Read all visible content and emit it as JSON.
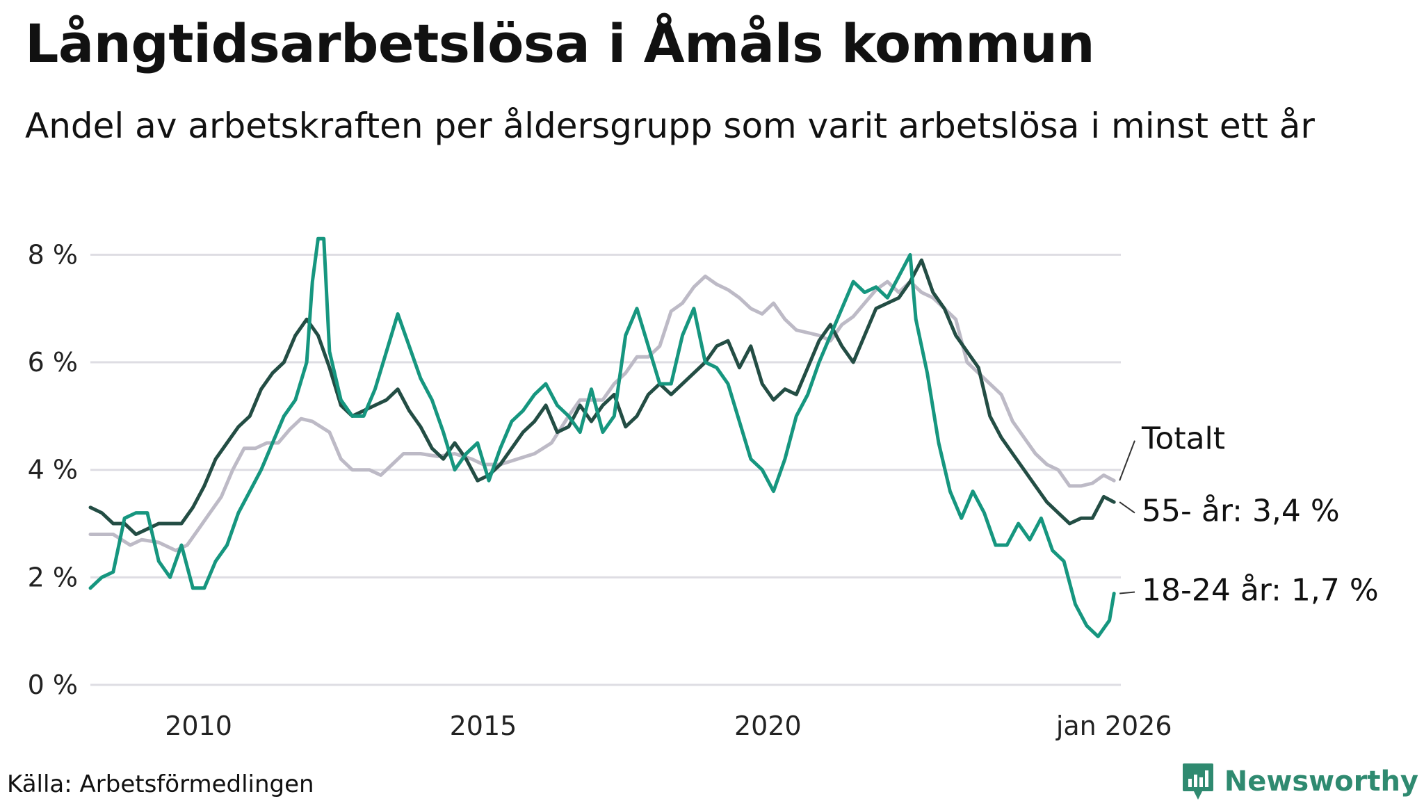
{
  "header": {
    "title": "Långtidsarbetslösa i Åmåls kommun",
    "subtitle": "Andel av arbetskraften per åldersgrupp som varit arbetslösa i minst ett år"
  },
  "footer": {
    "source": "Källa: Arbetsförmedlingen",
    "brand": "Newsworthy"
  },
  "colors": {
    "total": "#bdbac6",
    "age55": "#234d44",
    "age18_24": "#16967f",
    "grid": "#dedde3",
    "brand": "#2f8a70"
  },
  "chart_data": {
    "type": "line",
    "title": "Långtidsarbetslösa i Åmåls kommun",
    "subtitle": "Andel av arbetskraften per åldersgrupp som varit arbetslösa i minst ett år",
    "xlabel": "",
    "ylabel": "",
    "xlim": [
      2008.1,
      2026.2
    ],
    "ylim": [
      0,
      8.6
    ],
    "y_ticks": [
      0,
      2,
      4,
      6,
      8
    ],
    "y_tick_labels": [
      "0 %",
      "2 %",
      "4 %",
      "6 %",
      "8 %"
    ],
    "x_ticks": [
      2010,
      2015,
      2020,
      2026.08
    ],
    "x_tick_labels": [
      "2010",
      "2015",
      "2020",
      "jan 2026"
    ],
    "grid": true,
    "series": [
      {
        "name": "Totalt",
        "label": "Totalt",
        "key": "total",
        "points": [
          [
            2008.1,
            2.8
          ],
          [
            2008.5,
            2.8
          ],
          [
            2008.8,
            2.6
          ],
          [
            2009.0,
            2.7
          ],
          [
            2009.3,
            2.65
          ],
          [
            2009.6,
            2.5
          ],
          [
            2009.8,
            2.6
          ],
          [
            2010.0,
            2.9
          ],
          [
            2010.2,
            3.2
          ],
          [
            2010.4,
            3.5
          ],
          [
            2010.6,
            4.0
          ],
          [
            2010.8,
            4.4
          ],
          [
            2011.0,
            4.4
          ],
          [
            2011.2,
            4.5
          ],
          [
            2011.4,
            4.5
          ],
          [
            2011.6,
            4.75
          ],
          [
            2011.8,
            4.95
          ],
          [
            2012.0,
            4.9
          ],
          [
            2012.3,
            4.7
          ],
          [
            2012.5,
            4.2
          ],
          [
            2012.7,
            4.0
          ],
          [
            2013.0,
            4.0
          ],
          [
            2013.2,
            3.9
          ],
          [
            2013.4,
            4.1
          ],
          [
            2013.6,
            4.3
          ],
          [
            2013.9,
            4.3
          ],
          [
            2014.2,
            4.25
          ],
          [
            2014.5,
            4.3
          ],
          [
            2014.8,
            4.2
          ],
          [
            2015.0,
            4.1
          ],
          [
            2015.3,
            4.1
          ],
          [
            2015.6,
            4.2
          ],
          [
            2015.9,
            4.3
          ],
          [
            2016.2,
            4.5
          ],
          [
            2016.5,
            5.0
          ],
          [
            2016.7,
            5.3
          ],
          [
            2016.9,
            5.3
          ],
          [
            2017.1,
            5.3
          ],
          [
            2017.3,
            5.6
          ],
          [
            2017.5,
            5.8
          ],
          [
            2017.7,
            6.1
          ],
          [
            2017.9,
            6.1
          ],
          [
            2018.1,
            6.3
          ],
          [
            2018.3,
            6.95
          ],
          [
            2018.5,
            7.1
          ],
          [
            2018.7,
            7.4
          ],
          [
            2018.9,
            7.6
          ],
          [
            2019.1,
            7.45
          ],
          [
            2019.3,
            7.35
          ],
          [
            2019.5,
            7.2
          ],
          [
            2019.7,
            7.0
          ],
          [
            2019.9,
            6.9
          ],
          [
            2020.1,
            7.1
          ],
          [
            2020.3,
            6.8
          ],
          [
            2020.5,
            6.6
          ],
          [
            2020.7,
            6.55
          ],
          [
            2020.9,
            6.5
          ],
          [
            2021.1,
            6.4
          ],
          [
            2021.3,
            6.7
          ],
          [
            2021.5,
            6.85
          ],
          [
            2021.7,
            7.1
          ],
          [
            2021.9,
            7.35
          ],
          [
            2022.1,
            7.5
          ],
          [
            2022.3,
            7.3
          ],
          [
            2022.5,
            7.5
          ],
          [
            2022.7,
            7.3
          ],
          [
            2022.9,
            7.2
          ],
          [
            2023.1,
            7.0
          ],
          [
            2023.3,
            6.8
          ],
          [
            2023.5,
            6.0
          ],
          [
            2023.7,
            5.8
          ],
          [
            2023.9,
            5.6
          ],
          [
            2024.1,
            5.4
          ],
          [
            2024.3,
            4.9
          ],
          [
            2024.5,
            4.6
          ],
          [
            2024.7,
            4.3
          ],
          [
            2024.9,
            4.1
          ],
          [
            2025.1,
            4.0
          ],
          [
            2025.3,
            3.7
          ],
          [
            2025.5,
            3.7
          ],
          [
            2025.7,
            3.75
          ],
          [
            2025.9,
            3.9
          ],
          [
            2026.08,
            3.8
          ]
        ]
      },
      {
        "name": "55- år",
        "label": "55- år: 3,4 %",
        "key": "age55",
        "points": [
          [
            2008.1,
            3.3
          ],
          [
            2008.3,
            3.2
          ],
          [
            2008.5,
            3.0
          ],
          [
            2008.7,
            3.0
          ],
          [
            2008.9,
            2.8
          ],
          [
            2009.1,
            2.9
          ],
          [
            2009.3,
            3.0
          ],
          [
            2009.5,
            3.0
          ],
          [
            2009.7,
            3.0
          ],
          [
            2009.9,
            3.3
          ],
          [
            2010.1,
            3.7
          ],
          [
            2010.3,
            4.2
          ],
          [
            2010.5,
            4.5
          ],
          [
            2010.7,
            4.8
          ],
          [
            2010.9,
            5.0
          ],
          [
            2011.1,
            5.5
          ],
          [
            2011.3,
            5.8
          ],
          [
            2011.5,
            6.0
          ],
          [
            2011.7,
            6.5
          ],
          [
            2011.9,
            6.8
          ],
          [
            2012.1,
            6.5
          ],
          [
            2012.3,
            5.9
          ],
          [
            2012.5,
            5.2
          ],
          [
            2012.7,
            5.0
          ],
          [
            2012.9,
            5.1
          ],
          [
            2013.1,
            5.2
          ],
          [
            2013.3,
            5.3
          ],
          [
            2013.5,
            5.5
          ],
          [
            2013.7,
            5.1
          ],
          [
            2013.9,
            4.8
          ],
          [
            2014.1,
            4.4
          ],
          [
            2014.3,
            4.2
          ],
          [
            2014.5,
            4.5
          ],
          [
            2014.7,
            4.2
          ],
          [
            2014.9,
            3.8
          ],
          [
            2015.1,
            3.9
          ],
          [
            2015.3,
            4.1
          ],
          [
            2015.5,
            4.4
          ],
          [
            2015.7,
            4.7
          ],
          [
            2015.9,
            4.9
          ],
          [
            2016.1,
            5.2
          ],
          [
            2016.3,
            4.7
          ],
          [
            2016.5,
            4.8
          ],
          [
            2016.7,
            5.2
          ],
          [
            2016.9,
            4.9
          ],
          [
            2017.1,
            5.2
          ],
          [
            2017.3,
            5.4
          ],
          [
            2017.5,
            4.8
          ],
          [
            2017.7,
            5.0
          ],
          [
            2017.9,
            5.4
          ],
          [
            2018.1,
            5.6
          ],
          [
            2018.3,
            5.4
          ],
          [
            2018.5,
            5.6
          ],
          [
            2018.7,
            5.8
          ],
          [
            2018.9,
            6.0
          ],
          [
            2019.1,
            6.3
          ],
          [
            2019.3,
            6.4
          ],
          [
            2019.5,
            5.9
          ],
          [
            2019.7,
            6.3
          ],
          [
            2019.9,
            5.6
          ],
          [
            2020.1,
            5.3
          ],
          [
            2020.3,
            5.5
          ],
          [
            2020.5,
            5.4
          ],
          [
            2020.7,
            5.9
          ],
          [
            2020.9,
            6.4
          ],
          [
            2021.1,
            6.7
          ],
          [
            2021.3,
            6.3
          ],
          [
            2021.5,
            6.0
          ],
          [
            2021.7,
            6.5
          ],
          [
            2021.9,
            7.0
          ],
          [
            2022.1,
            7.1
          ],
          [
            2022.3,
            7.2
          ],
          [
            2022.5,
            7.5
          ],
          [
            2022.7,
            7.9
          ],
          [
            2022.9,
            7.3
          ],
          [
            2023.1,
            7.0
          ],
          [
            2023.3,
            6.5
          ],
          [
            2023.5,
            6.2
          ],
          [
            2023.7,
            5.9
          ],
          [
            2023.9,
            5.0
          ],
          [
            2024.1,
            4.6
          ],
          [
            2024.3,
            4.3
          ],
          [
            2024.5,
            4.0
          ],
          [
            2024.7,
            3.7
          ],
          [
            2024.9,
            3.4
          ],
          [
            2025.1,
            3.2
          ],
          [
            2025.3,
            3.0
          ],
          [
            2025.5,
            3.1
          ],
          [
            2025.7,
            3.1
          ],
          [
            2025.9,
            3.5
          ],
          [
            2026.08,
            3.4
          ]
        ]
      },
      {
        "name": "18-24 år",
        "label": "18-24 år: 1,7 %",
        "key": "age18_24",
        "points": [
          [
            2008.1,
            1.8
          ],
          [
            2008.3,
            2.0
          ],
          [
            2008.5,
            2.1
          ],
          [
            2008.7,
            3.1
          ],
          [
            2008.9,
            3.2
          ],
          [
            2009.1,
            3.2
          ],
          [
            2009.3,
            2.3
          ],
          [
            2009.5,
            2.0
          ],
          [
            2009.7,
            2.6
          ],
          [
            2009.9,
            1.8
          ],
          [
            2010.1,
            1.8
          ],
          [
            2010.3,
            2.3
          ],
          [
            2010.5,
            2.6
          ],
          [
            2010.7,
            3.2
          ],
          [
            2010.9,
            3.6
          ],
          [
            2011.1,
            4.0
          ],
          [
            2011.3,
            4.5
          ],
          [
            2011.5,
            5.0
          ],
          [
            2011.7,
            5.3
          ],
          [
            2011.9,
            6.0
          ],
          [
            2012.0,
            7.5
          ],
          [
            2012.1,
            8.3
          ],
          [
            2012.2,
            8.3
          ],
          [
            2012.3,
            6.2
          ],
          [
            2012.5,
            5.3
          ],
          [
            2012.7,
            5.0
          ],
          [
            2012.9,
            5.0
          ],
          [
            2013.1,
            5.5
          ],
          [
            2013.3,
            6.2
          ],
          [
            2013.5,
            6.9
          ],
          [
            2013.7,
            6.3
          ],
          [
            2013.9,
            5.7
          ],
          [
            2014.1,
            5.3
          ],
          [
            2014.3,
            4.7
          ],
          [
            2014.5,
            4.0
          ],
          [
            2014.7,
            4.3
          ],
          [
            2014.9,
            4.5
          ],
          [
            2015.1,
            3.8
          ],
          [
            2015.3,
            4.4
          ],
          [
            2015.5,
            4.9
          ],
          [
            2015.7,
            5.1
          ],
          [
            2015.9,
            5.4
          ],
          [
            2016.1,
            5.6
          ],
          [
            2016.3,
            5.2
          ],
          [
            2016.5,
            5.0
          ],
          [
            2016.7,
            4.7
          ],
          [
            2016.9,
            5.5
          ],
          [
            2017.1,
            4.7
          ],
          [
            2017.3,
            5.0
          ],
          [
            2017.5,
            6.5
          ],
          [
            2017.7,
            7.0
          ],
          [
            2017.9,
            6.3
          ],
          [
            2018.1,
            5.6
          ],
          [
            2018.3,
            5.6
          ],
          [
            2018.5,
            6.5
          ],
          [
            2018.7,
            7.0
          ],
          [
            2018.9,
            6.0
          ],
          [
            2019.1,
            5.9
          ],
          [
            2019.3,
            5.6
          ],
          [
            2019.5,
            4.9
          ],
          [
            2019.7,
            4.2
          ],
          [
            2019.9,
            4.0
          ],
          [
            2020.1,
            3.6
          ],
          [
            2020.3,
            4.2
          ],
          [
            2020.5,
            5.0
          ],
          [
            2020.7,
            5.4
          ],
          [
            2020.9,
            6.0
          ],
          [
            2021.1,
            6.5
          ],
          [
            2021.3,
            7.0
          ],
          [
            2021.5,
            7.5
          ],
          [
            2021.7,
            7.3
          ],
          [
            2021.9,
            7.4
          ],
          [
            2022.1,
            7.2
          ],
          [
            2022.3,
            7.6
          ],
          [
            2022.5,
            8.0
          ],
          [
            2022.6,
            6.8
          ],
          [
            2022.8,
            5.8
          ],
          [
            2023.0,
            4.5
          ],
          [
            2023.2,
            3.6
          ],
          [
            2023.4,
            3.1
          ],
          [
            2023.6,
            3.6
          ],
          [
            2023.8,
            3.2
          ],
          [
            2024.0,
            2.6
          ],
          [
            2024.2,
            2.6
          ],
          [
            2024.4,
            3.0
          ],
          [
            2024.6,
            2.7
          ],
          [
            2024.8,
            3.1
          ],
          [
            2025.0,
            2.5
          ],
          [
            2025.2,
            2.3
          ],
          [
            2025.4,
            1.5
          ],
          [
            2025.6,
            1.1
          ],
          [
            2025.8,
            0.9
          ],
          [
            2026.0,
            1.2
          ],
          [
            2026.08,
            1.7
          ]
        ]
      }
    ]
  }
}
